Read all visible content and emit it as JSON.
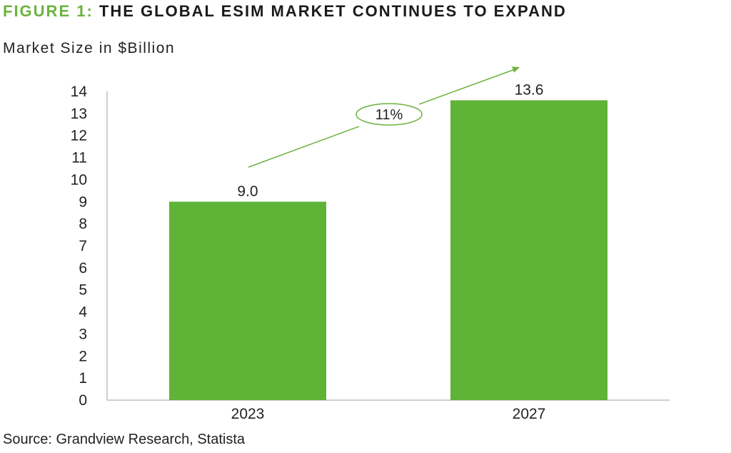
{
  "header": {
    "figure_label": "FIGURE 1:",
    "title": "THE GLOBAL ESIM MARKET CONTINUES TO EXPAND"
  },
  "unit_label": "Market Size in $Billion",
  "source": "Source: Grandview Research, Statista",
  "colors": {
    "bar": "#5fb336",
    "accent": "#6bb33f",
    "axis": "#bfbfbf"
  },
  "chart_data": {
    "type": "bar",
    "categories": [
      "2023",
      "2027"
    ],
    "values": [
      9.0,
      13.6
    ],
    "value_labels": [
      "9.0",
      "13.6"
    ],
    "ylabel": "Market Size in $Billion",
    "ylim": [
      0,
      14
    ],
    "yticks": [
      0,
      1,
      2,
      3,
      4,
      5,
      6,
      7,
      8,
      9,
      10,
      11,
      12,
      13,
      14
    ],
    "grid": false,
    "annotation": {
      "text": "11%",
      "style": "green ellipse on upward arrow between bars"
    }
  }
}
